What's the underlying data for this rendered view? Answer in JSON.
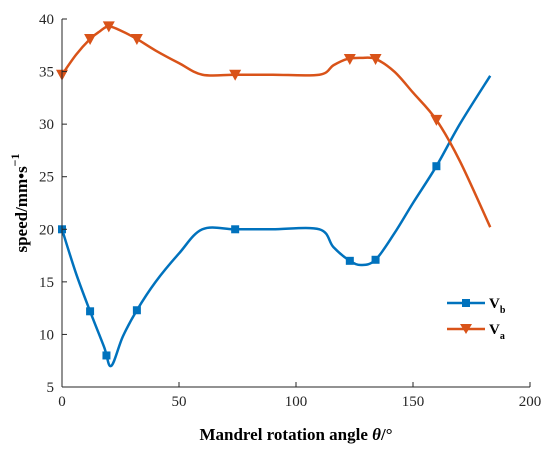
{
  "chart_data": {
    "type": "line",
    "xlabel": "Mandrel rotation angle θ/°",
    "xlabel_text": "Mandrel rotation angle ",
    "xlabel_theta": "θ",
    "xlabel_unit": "/°",
    "ylabel_main": "speed/mm•s",
    "ylabel_exp": "−1",
    "xlim": [
      0,
      200
    ],
    "ylim": [
      5,
      40
    ],
    "xticks": [
      0,
      50,
      100,
      150,
      200
    ],
    "yticks": [
      5,
      10,
      15,
      20,
      25,
      30,
      35,
      40
    ],
    "grid": false,
    "legend_position": "right-center",
    "series": [
      {
        "name": "Vb",
        "label_main": "V",
        "label_sub": "b",
        "color": "#0072BD",
        "marker": "square",
        "x": [
          0,
          6,
          12,
          18,
          21,
          26,
          32,
          40,
          50,
          60,
          74,
          90,
          110,
          116,
          123,
          128,
          134,
          142,
          150,
          160,
          170,
          183
        ],
        "y": [
          20,
          15.8,
          12.2,
          8.8,
          7.0,
          9.8,
          12.3,
          15.0,
          17.7,
          20,
          20,
          20,
          20,
          18.3,
          17.0,
          16.6,
          17.1,
          19.6,
          22.5,
          26.0,
          30.0,
          34.6
        ],
        "markers_x": [
          0,
          12,
          19,
          32,
          74,
          123,
          134,
          160
        ],
        "markers_y": [
          20,
          12.2,
          8.0,
          12.3,
          20,
          17.0,
          17.1,
          26.0
        ]
      },
      {
        "name": "Va",
        "label_main": "V",
        "label_sub": "a",
        "color": "#D95319",
        "marker": "triangle-down",
        "x": [
          0,
          6,
          12,
          16,
          20,
          26,
          32,
          40,
          50,
          60,
          74,
          90,
          110,
          116,
          122,
          128,
          134,
          142,
          150,
          160,
          170,
          183
        ],
        "y": [
          34.7,
          36.6,
          38.1,
          38.8,
          39.3,
          38.8,
          38.1,
          37.0,
          35.8,
          34.7,
          34.7,
          34.7,
          34.7,
          35.6,
          36.2,
          36.3,
          36.2,
          35.0,
          33.0,
          30.4,
          26.5,
          20.2
        ],
        "markers_x": [
          0,
          12,
          20,
          32,
          74,
          123,
          134,
          160
        ],
        "markers_y": [
          34.7,
          38.1,
          39.3,
          38.1,
          34.7,
          36.2,
          36.2,
          30.4
        ]
      }
    ]
  }
}
